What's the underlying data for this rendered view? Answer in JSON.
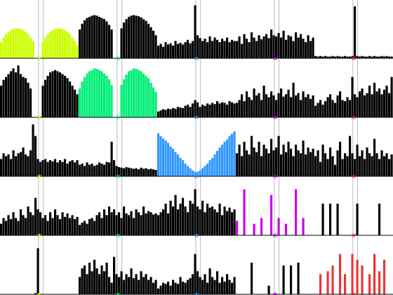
{
  "chart_data": {
    "type": "histogram-grid",
    "rows": 5,
    "cols": 5,
    "xlim": [
      0,
      100
    ],
    "ylim": [
      0,
      100
    ],
    "guides": [
      49,
      55
    ],
    "marker_x": 50,
    "marker_colors": [
      "#ccff00",
      "#00ee66",
      "#3399ff",
      "#cc00ee",
      "#ee3333"
    ],
    "cells": [
      {
        "color": "#ccff00",
        "values": [
          28,
          36,
          42,
          46,
          49,
          51,
          52,
          52,
          51,
          49,
          46,
          42,
          36,
          30,
          0,
          0,
          0,
          28,
          36,
          42,
          46,
          49,
          51,
          52,
          52,
          51,
          49,
          46,
          42,
          36,
          30,
          22
        ]
      },
      {
        "color": "#000000",
        "values": [
          50,
          60,
          66,
          70,
          72,
          74,
          75,
          74,
          72,
          70,
          68,
          64,
          58,
          50,
          0,
          0,
          0,
          52,
          62,
          68,
          72,
          74,
          75,
          74,
          73,
          71,
          68,
          65,
          60,
          54,
          48,
          40
        ]
      },
      {
        "color": "#000000",
        "values": [
          22,
          25,
          20,
          28,
          24,
          26,
          22,
          30,
          25,
          27,
          24,
          28,
          32,
          26,
          30,
          92,
          40,
          35,
          30,
          34,
          28,
          38,
          30,
          36,
          32,
          28,
          34,
          30,
          36,
          28,
          32,
          30
        ]
      },
      {
        "color": "#000000",
        "values": [
          30,
          38,
          25,
          42,
          34,
          28,
          45,
          36,
          30,
          40,
          33,
          38,
          42,
          35,
          50,
          40,
          38,
          44,
          36,
          48,
          32,
          40,
          38,
          30,
          45,
          36,
          42,
          34,
          28,
          40,
          30,
          36
        ]
      },
      {
        "color": "#000000",
        "values": [
          4,
          3,
          4,
          3,
          4,
          3,
          3,
          4,
          3,
          4,
          3,
          3,
          4,
          3,
          3,
          4,
          90,
          4,
          3,
          4,
          3,
          3,
          4,
          3,
          4,
          3,
          3,
          4,
          3,
          4,
          3,
          3
        ]
      },
      {
        "color": "#000000",
        "values": [
          55,
          65,
          70,
          75,
          80,
          85,
          78,
          90,
          75,
          70,
          68,
          60,
          50,
          0,
          0,
          0,
          0,
          55,
          65,
          72,
          78,
          80,
          82,
          80,
          78,
          75,
          72,
          68,
          62,
          55,
          48,
          40
        ]
      },
      {
        "color": "#00ee77",
        "values": [
          50,
          62,
          70,
          76,
          80,
          82,
          85,
          84,
          82,
          80,
          76,
          72,
          66,
          56,
          0,
          0,
          0,
          56,
          66,
          74,
          80,
          82,
          85,
          84,
          82,
          80,
          76,
          72,
          68,
          60,
          52,
          44
        ]
      },
      {
        "color": "#000000",
        "values": [
          10,
          12,
          14,
          13,
          15,
          14,
          16,
          15,
          18,
          17,
          16,
          20,
          22,
          18,
          24,
          30,
          26,
          18,
          22,
          20,
          24,
          22,
          25,
          23,
          28,
          24,
          26,
          25,
          22,
          28,
          26,
          24
        ]
      },
      {
        "color": "#000000",
        "values": [
          25,
          30,
          40,
          28,
          45,
          35,
          30,
          50,
          38,
          42,
          30,
          55,
          40,
          35,
          45,
          38,
          30,
          42,
          50,
          36,
          40,
          48,
          35,
          60,
          38,
          42,
          30,
          45,
          35,
          40,
          32,
          38
        ]
      },
      {
        "color": "#000000",
        "values": [
          20,
          25,
          30,
          22,
          28,
          35,
          40,
          30,
          25,
          38,
          45,
          30,
          28,
          35,
          30,
          70,
          40,
          35,
          45,
          50,
          38,
          42,
          55,
          40,
          60,
          45,
          50,
          40,
          48,
          55,
          42,
          70
        ]
      },
      {
        "color": "#000000",
        "values": [
          30,
          40,
          35,
          38,
          30,
          45,
          35,
          40,
          42,
          50,
          38,
          35,
          45,
          90,
          70,
          30,
          25,
          28,
          30,
          25,
          28,
          26,
          30,
          24,
          28,
          25,
          30,
          22,
          26,
          28,
          24,
          28
        ]
      },
      {
        "color": "#000000",
        "values": [
          20,
          22,
          18,
          24,
          20,
          22,
          18,
          20,
          24,
          22,
          20,
          25,
          24,
          60,
          28,
          18,
          16,
          15,
          14,
          16,
          15,
          14,
          13,
          14,
          12,
          15,
          13,
          14,
          12,
          13,
          12,
          11
        ]
      },
      {
        "color": "#3399ff",
        "values": [
          75,
          70,
          66,
          62,
          58,
          52,
          48,
          42,
          38,
          32,
          28,
          22,
          18,
          14,
          10,
          8,
          8,
          10,
          14,
          18,
          22,
          28,
          32,
          38,
          44,
          50,
          55,
          60,
          64,
          70,
          74,
          78
        ]
      },
      {
        "color": "#000000",
        "values": [
          40,
          55,
          35,
          60,
          45,
          38,
          70,
          50,
          42,
          60,
          35,
          55,
          48,
          40,
          65,
          45,
          50,
          70,
          38,
          55,
          42,
          60,
          48,
          35,
          55,
          45,
          40,
          62,
          38,
          50,
          42,
          48
        ]
      },
      {
        "color": "#000000",
        "values": [
          35,
          45,
          25,
          55,
          40,
          30,
          50,
          35,
          20,
          45,
          60,
          30,
          40,
          35,
          70,
          40,
          30,
          55,
          35,
          45,
          30,
          50,
          40,
          35,
          65,
          40,
          30,
          45,
          35,
          40,
          30,
          38
        ]
      },
      {
        "color": "#000000",
        "values": [
          20,
          30,
          25,
          35,
          28,
          40,
          30,
          25,
          45,
          35,
          30,
          50,
          40,
          35,
          65,
          45,
          40,
          30,
          35,
          25,
          40,
          30,
          45,
          35,
          28,
          40,
          32,
          38,
          30,
          35,
          28,
          32
        ]
      },
      {
        "color": "#000000",
        "values": [
          18,
          22,
          25,
          20,
          28,
          30,
          25,
          35,
          40,
          30,
          45,
          35,
          50,
          40,
          45,
          35,
          40,
          30,
          50,
          38,
          35,
          42,
          30,
          45,
          40,
          35,
          50,
          38,
          42,
          40,
          36,
          38
        ]
      },
      {
        "color": "#000000",
        "values": [
          35,
          40,
          45,
          55,
          38,
          60,
          50,
          70,
          45,
          55,
          65,
          50,
          40,
          60,
          55,
          80,
          50,
          45,
          60,
          40,
          55,
          48,
          50,
          45,
          40,
          55,
          35,
          50,
          42,
          48,
          40,
          45
        ]
      },
      {
        "color": "#cc00ee",
        "values": [
          25,
          0,
          0,
          80,
          0,
          0,
          0,
          20,
          0,
          0,
          30,
          0,
          0,
          0,
          70,
          0,
          0,
          30,
          0,
          0,
          20,
          0,
          0,
          0,
          80,
          0,
          0,
          30,
          0,
          0,
          0,
          0
        ]
      },
      {
        "color": "#000000",
        "values": [
          0,
          0,
          0,
          55,
          0,
          0,
          55,
          0,
          0,
          55,
          0,
          0,
          0,
          0,
          0,
          0,
          0,
          55,
          0,
          0,
          0,
          0,
          0,
          0,
          0,
          0,
          55,
          0,
          0,
          0,
          0,
          0
        ]
      },
      {
        "color": "#000000",
        "values": [
          0,
          0,
          0,
          0,
          0,
          0,
          0,
          0,
          0,
          0,
          0,
          0,
          0,
          0,
          2,
          80,
          1,
          0,
          0,
          0,
          0,
          0,
          0,
          0,
          0,
          0,
          0,
          0,
          0,
          0,
          0,
          0
        ]
      },
      {
        "color": "#000000",
        "values": [
          30,
          45,
          50,
          35,
          55,
          40,
          60,
          45,
          35,
          50,
          40,
          55,
          30,
          20,
          65,
          35,
          30,
          40,
          25,
          35,
          30,
          45,
          28,
          35,
          25,
          40,
          30,
          35,
          25,
          30,
          20,
          25
        ]
      },
      {
        "color": "#000000",
        "values": [
          10,
          15,
          20,
          18,
          22,
          15,
          25,
          20,
          18,
          30,
          22,
          20,
          25,
          28,
          35,
          70,
          40,
          30,
          25,
          35,
          20,
          45,
          30,
          25,
          40,
          20,
          30,
          22,
          35,
          25,
          20,
          30
        ]
      },
      {
        "color": "#000000",
        "values": [
          0,
          0,
          0,
          0,
          0,
          0,
          55,
          0,
          0,
          0,
          0,
          0,
          0,
          15,
          0,
          0,
          0,
          0,
          0,
          50,
          0,
          0,
          50,
          0,
          0,
          55,
          0,
          0,
          0,
          0,
          0,
          0
        ]
      },
      {
        "color": "#ee3333",
        "values": [
          0,
          0,
          35,
          0,
          0,
          40,
          0,
          50,
          0,
          0,
          70,
          0,
          35,
          0,
          0,
          70,
          0,
          60,
          0,
          50,
          0,
          0,
          35,
          0,
          70,
          0,
          40,
          0,
          60,
          0,
          0,
          0
        ]
      }
    ]
  }
}
